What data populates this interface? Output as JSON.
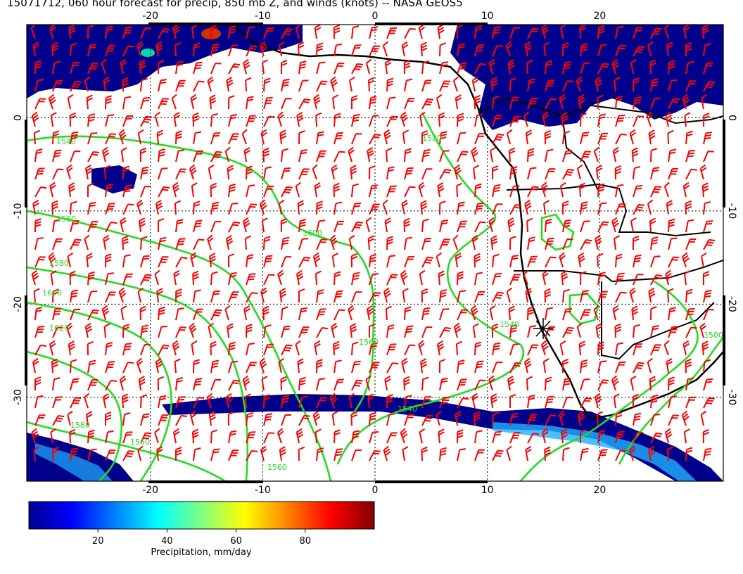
{
  "title": "15071712, 060 hour forecast for precip, 850 mb Z, and winds (knots) -- NASA GEOS5",
  "map": {
    "lon_range": [
      -31,
      31
    ],
    "lat_range": [
      -39,
      10
    ],
    "lon_ticks": [
      "-20",
      "-10",
      "0",
      "10",
      "20"
    ],
    "lon_tick_values": [
      -20,
      -10,
      0,
      10,
      20
    ],
    "lat_ticks": [
      "0",
      "-10",
      "-20",
      "-30"
    ],
    "lat_tick_values": [
      0,
      -10,
      -20,
      -30
    ],
    "precip_color": "#00008c",
    "coast_color": "#000000",
    "contour_color": "#22dd22",
    "barb_color": "#ff0000",
    "contour_labels": [
      "1540",
      "1560",
      "1580",
      "1600",
      "1620",
      "1520",
      "1500",
      "1560",
      "1540",
      "1580",
      "1560",
      "1540",
      "1560",
      "1600"
    ],
    "marker_icon": "asterisk-station-marker"
  },
  "colorbar": {
    "label": "Precipitation, mm/day",
    "ticks": [
      "20",
      "40",
      "60",
      "80"
    ],
    "tick_values": [
      20,
      40,
      60,
      80
    ],
    "range": [
      0,
      100
    ],
    "colors": [
      "#00008f",
      "#0000ff",
      "#0080ff",
      "#00ffff",
      "#80ff80",
      "#ffff00",
      "#ff8000",
      "#ff0000",
      "#800000"
    ]
  }
}
